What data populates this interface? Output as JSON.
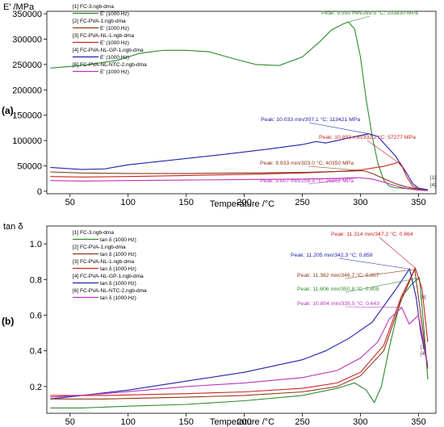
{
  "chart_data": [
    {
      "type": "line",
      "panel_label": "(a)",
      "ylabel": "E' /MPa",
      "xlabel": "Temperature /°C",
      "xlim": [
        30,
        365
      ],
      "ylim": [
        -5000,
        355000
      ],
      "xticks": [
        "50",
        "100",
        "150",
        "200",
        "250",
        "300",
        "350"
      ],
      "xtick_values": [
        50,
        100,
        150,
        200,
        250,
        300,
        350
      ],
      "yticks": [
        "0",
        "50000",
        "100000",
        "150000",
        "200000",
        "250000",
        "300000",
        "350000"
      ],
      "ytick_values": [
        0,
        50000,
        100000,
        150000,
        200000,
        250000,
        300000,
        350000
      ],
      "grid": false,
      "legend_position": "top-left",
      "legend": [
        {
          "key": "[1]",
          "file": "FC-3.ngb-dma",
          "sub": "E' (1000 Hz)",
          "color": "#2e8b2e"
        },
        {
          "key": "[2]",
          "file": "FC-PVA-1.ngb-dma",
          "sub": "E' (1000 Hz)",
          "color": "#8b3a1a"
        },
        {
          "key": "[3]",
          "file": "FC-PVA-NL-1.ngb-dma",
          "sub": "E' (1000 Hz)",
          "color": "#cc2222"
        },
        {
          "key": "[4]",
          "file": "FC-PVA-NL-GP-1.ngb-dma",
          "sub": "E' (1000 Hz)",
          "color": "#2222aa"
        },
        {
          "key": "[6]",
          "file": "FC-PVA-NL-NTC-2.ngb-dma",
          "sub": "E' (1000 Hz)",
          "color": "#bb33bb"
        }
      ],
      "series": [
        {
          "color": "#2e8b2e",
          "x": [
            33,
            60,
            90,
            110,
            130,
            150,
            170,
            190,
            210,
            230,
            250,
            265,
            275,
            285,
            289.5,
            295,
            300,
            305,
            310,
            315,
            320,
            325,
            330,
            340,
            350,
            358
          ],
          "y": [
            243000,
            248000,
            258000,
            272000,
            278000,
            278000,
            275000,
            262000,
            250000,
            248000,
            265000,
            295000,
            318000,
            330000,
            333830,
            320000,
            265000,
            180000,
            110000,
            55000,
            22000,
            10000,
            7000,
            5000,
            4000,
            3000
          ]
        },
        {
          "color": "#2222aa",
          "x": [
            33,
            60,
            80,
            100,
            140,
            180,
            220,
            250,
            262,
            270,
            280,
            290,
            300,
            307.1,
            315,
            320,
            330,
            340,
            345,
            350,
            358
          ],
          "y": [
            47000,
            43000,
            44000,
            52000,
            62000,
            72000,
            83000,
            92000,
            98000,
            95000,
            100000,
            105000,
            110000,
            113421,
            108000,
            95000,
            70000,
            35000,
            15000,
            6000,
            3000
          ]
        },
        {
          "color": "#cc2222",
          "x": [
            33,
            60,
            100,
            150,
            200,
            250,
            280,
            300,
            320,
            330,
            332.2,
            336,
            340,
            345,
            350,
            358
          ],
          "y": [
            29000,
            28000,
            29000,
            31000,
            33000,
            36000,
            39000,
            42000,
            49000,
            55000,
            57277,
            48000,
            28000,
            10000,
            4000,
            2000
          ]
        },
        {
          "color": "#8b3a1a",
          "x": [
            33,
            60,
            100,
            150,
            200,
            250,
            280,
            295,
            303,
            310,
            320,
            330,
            340,
            350,
            358
          ],
          "y": [
            38000,
            36000,
            35000,
            35000,
            36000,
            37000,
            39000,
            40000,
            40350,
            35000,
            25000,
            15000,
            8000,
            4000,
            2000
          ]
        },
        {
          "color": "#bb33bb",
          "x": [
            33,
            60,
            100,
            150,
            200,
            250,
            280,
            298.8,
            310,
            320,
            330,
            340,
            350,
            358
          ],
          "y": [
            21000,
            20000,
            21000,
            22000,
            23000,
            24000,
            25500,
            26802,
            24000,
            18000,
            11000,
            5000,
            2000,
            1000
          ]
        }
      ],
      "annotations": [
        {
          "text": "Peak: 9.550 min/289.5 °C; 333830 MPa",
          "x": 289.5,
          "y": 333830,
          "color": "#2e8b2e"
        },
        {
          "text": "Peak: 10.033 min/307.1 °C; 113421 MPa",
          "x": 307.1,
          "y": 113421,
          "color": "#2222aa"
        },
        {
          "text": "Peak: 10.893 min/332.2 °C; 57277 MPa",
          "x": 332.2,
          "y": 57277,
          "color": "#cc2222"
        },
        {
          "text": "Peak: 9.933 min/303.0 °C; 40350 MPa",
          "x": 303.0,
          "y": 40350,
          "color": "#8b3a1a"
        },
        {
          "text": "Peak: 9.607 min/298.8 °C; 26802 MPa",
          "x": 298.8,
          "y": 26802,
          "color": "#bb33bb"
        }
      ],
      "end_labels": [
        "[1]",
        "[4]"
      ]
    },
    {
      "type": "line",
      "panel_label": "(b)",
      "ylabel": "tan δ",
      "xlabel": "Temperature /°C",
      "xlim": [
        30,
        365
      ],
      "ylim": [
        0.05,
        1.1
      ],
      "xticks": [
        "50",
        "100",
        "150",
        "200",
        "250",
        "300",
        "350"
      ],
      "xtick_values": [
        50,
        100,
        150,
        200,
        250,
        300,
        350
      ],
      "yticks": [
        "0.2",
        "0.4",
        "0.6",
        "0.8",
        "1.0"
      ],
      "ytick_values": [
        0.2,
        0.4,
        0.6,
        0.8,
        1.0
      ],
      "grid": false,
      "legend_position": "top-left",
      "legend": [
        {
          "key": "[1]",
          "file": "FC-3.ngb-dma",
          "sub": "tan δ (1000 Hz)",
          "color": "#2e8b2e"
        },
        {
          "key": "[2]",
          "file": "FC-PVA-1.ngb-dma",
          "sub": "tan δ (1000 Hz)",
          "color": "#8b3a1a"
        },
        {
          "key": "[3]",
          "file": "FC-PVA-NL-1.ngb-dma",
          "sub": "tan δ (1000 Hz)",
          "color": "#cc2222"
        },
        {
          "key": "[4]",
          "file": "FC-PVA-NL-GP-1.ngb-dma",
          "sub": "tan δ (1000 Hz)",
          "color": "#2222aa"
        },
        {
          "key": "[6]",
          "file": "FC-PVA-NL-NTC-2.ngb-dma",
          "sub": "tan δ (1000 Hz)",
          "color": "#bb33bb"
        }
      ],
      "series": [
        {
          "color": "#2e8b2e",
          "x": [
            33,
            60,
            100,
            150,
            200,
            250,
            280,
            295,
            305,
            312,
            318,
            325,
            335,
            345,
            350.8,
            355,
            358
          ],
          "y": [
            0.08,
            0.08,
            0.09,
            0.1,
            0.12,
            0.15,
            0.19,
            0.22,
            0.18,
            0.11,
            0.2,
            0.42,
            0.7,
            0.78,
            0.809,
            0.5,
            0.24
          ]
        },
        {
          "color": "#2222aa",
          "x": [
            33,
            60,
            100,
            150,
            200,
            250,
            270,
            290,
            310,
            330,
            342.3,
            348,
            352,
            358
          ],
          "y": [
            0.13,
            0.15,
            0.18,
            0.23,
            0.28,
            0.35,
            0.4,
            0.47,
            0.56,
            0.74,
            0.859,
            0.7,
            0.5,
            0.32
          ]
        },
        {
          "color": "#cc2222",
          "x": [
            33,
            80,
            150,
            200,
            250,
            280,
            300,
            320,
            335,
            347.2,
            353,
            358
          ],
          "y": [
            0.15,
            0.15,
            0.16,
            0.17,
            0.19,
            0.22,
            0.28,
            0.43,
            0.7,
            0.864,
            0.75,
            0.45
          ]
        },
        {
          "color": "#8b3a1a",
          "x": [
            33,
            80,
            150,
            200,
            250,
            280,
            300,
            320,
            335,
            346.7,
            352,
            358
          ],
          "y": [
            0.13,
            0.13,
            0.14,
            0.15,
            0.17,
            0.2,
            0.26,
            0.4,
            0.68,
            0.857,
            0.6,
            0.3
          ]
        },
        {
          "color": "#bb33bb",
          "x": [
            33,
            80,
            150,
            200,
            250,
            280,
            300,
            315,
            325,
            335.5,
            342,
            350,
            358
          ],
          "y": [
            0.14,
            0.16,
            0.2,
            0.22,
            0.25,
            0.29,
            0.36,
            0.45,
            0.58,
            0.643,
            0.55,
            0.6,
            0.32
          ]
        }
      ],
      "annotations": [
        {
          "text": "Peak: 11.314 min/347.2 °C; 0.864",
          "x": 347.2,
          "y": 0.864,
          "color": "#cc2222"
        },
        {
          "text": "Peak: 11.205 min/342.3 °C; 0.859",
          "x": 342.3,
          "y": 0.859,
          "color": "#2222aa"
        },
        {
          "text": "Peak: 11.362 min/346.7 °C; 0.857",
          "x": 346.7,
          "y": 0.857,
          "color": "#8b3a1a"
        },
        {
          "text": "Peak: 11.606 min/350.8 °C; 0.809",
          "x": 350.8,
          "y": 0.809,
          "color": "#2e8b2e"
        },
        {
          "text": "Peak: 10.804 min/335.5 °C; 0.643",
          "x": 335.5,
          "y": 0.643,
          "color": "#bb33bb"
        }
      ],
      "end_labels": [
        "[1]",
        "[4]",
        "[6]"
      ]
    }
  ]
}
